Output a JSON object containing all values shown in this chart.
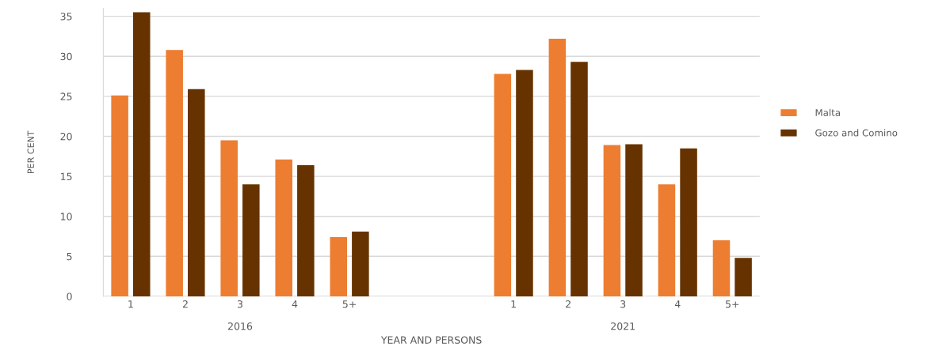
{
  "chart_data": {
    "type": "bar",
    "ylabel": "PER CENT",
    "xlabel": "YEAR AND PERSONS",
    "categories": [
      "1",
      "2",
      "3",
      "4",
      "5+",
      null,
      null,
      "1",
      "2",
      "3",
      "4",
      "5+"
    ],
    "series": [
      {
        "name": "Malta",
        "color": "#ed7d31",
        "values": [
          25.1,
          30.8,
          19.5,
          17.1,
          7.4,
          null,
          null,
          27.8,
          32.2,
          18.9,
          14.0,
          7.0
        ]
      },
      {
        "name": "Gozo and Comino",
        "color": "#663300",
        "values": [
          35.5,
          25.9,
          14.0,
          16.4,
          8.1,
          null,
          null,
          28.3,
          29.3,
          19.0,
          18.5,
          4.8
        ]
      }
    ],
    "annotations": [
      "2016",
      "2021"
    ],
    "ylim": [
      0,
      36
    ],
    "yticks": [
      0,
      5,
      10,
      15,
      20,
      25,
      30,
      35
    ],
    "grid": "y",
    "legend": "right"
  }
}
